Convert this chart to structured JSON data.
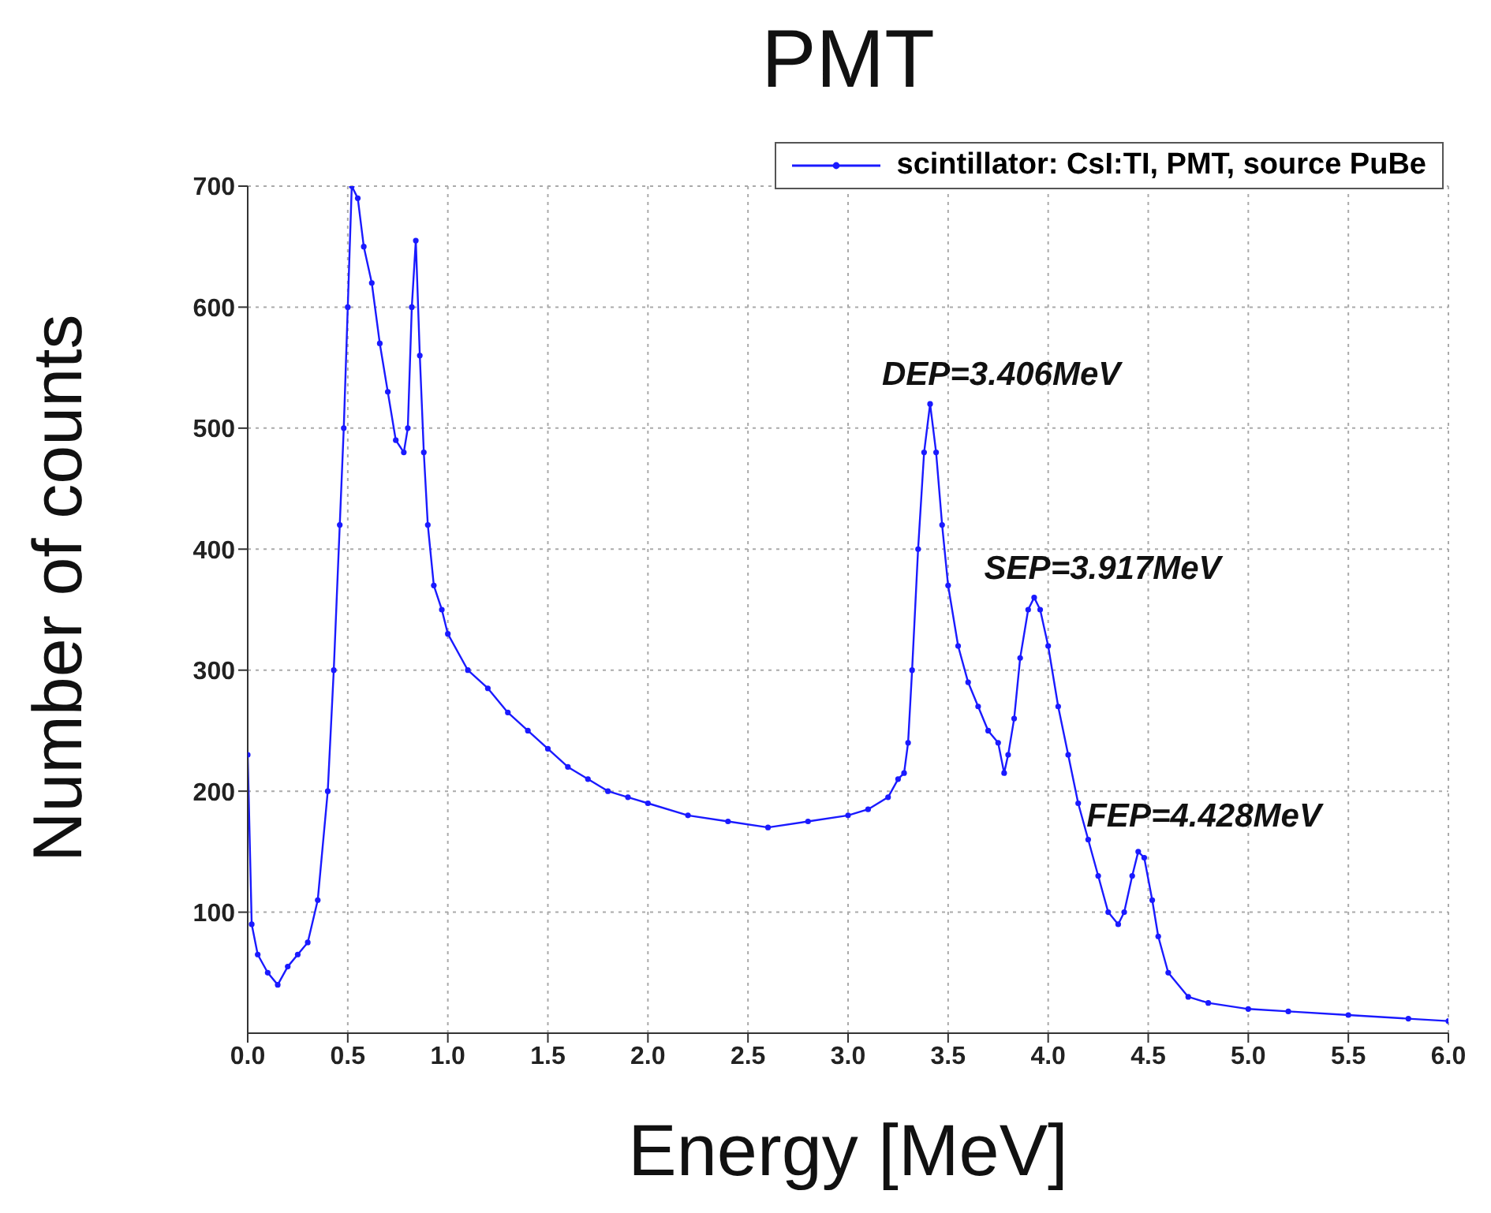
{
  "chart_data": {
    "type": "line",
    "title": "PMT",
    "xlabel": "Energy [MeV]",
    "ylabel": "Number of counts",
    "x": [
      0.0,
      0.02,
      0.05,
      0.1,
      0.15,
      0.2,
      0.25,
      0.3,
      0.35,
      0.4,
      0.43,
      0.46,
      0.48,
      0.5,
      0.52,
      0.55,
      0.58,
      0.62,
      0.66,
      0.7,
      0.74,
      0.78,
      0.8,
      0.82,
      0.84,
      0.86,
      0.88,
      0.9,
      0.93,
      0.97,
      1.0,
      1.1,
      1.2,
      1.3,
      1.4,
      1.5,
      1.6,
      1.7,
      1.8,
      1.9,
      2.0,
      2.2,
      2.4,
      2.6,
      2.8,
      3.0,
      3.1,
      3.2,
      3.25,
      3.28,
      3.3,
      3.32,
      3.35,
      3.38,
      3.41,
      3.44,
      3.47,
      3.5,
      3.55,
      3.6,
      3.65,
      3.7,
      3.75,
      3.78,
      3.8,
      3.83,
      3.86,
      3.9,
      3.93,
      3.96,
      4.0,
      4.05,
      4.1,
      4.15,
      4.2,
      4.25,
      4.3,
      4.35,
      4.38,
      4.42,
      4.45,
      4.48,
      4.52,
      4.55,
      4.6,
      4.7,
      4.8,
      5.0,
      5.2,
      5.5,
      5.8,
      6.0
    ],
    "series": [
      {
        "name": "scintillator: CsI:TI, PMT, source PuBe",
        "color": "#1a1aff",
        "values": [
          230,
          90,
          65,
          50,
          40,
          55,
          65,
          75,
          110,
          200,
          300,
          420,
          500,
          600,
          700,
          690,
          650,
          620,
          570,
          530,
          490,
          480,
          500,
          600,
          655,
          560,
          480,
          420,
          370,
          350,
          330,
          300,
          285,
          265,
          250,
          235,
          220,
          210,
          200,
          195,
          190,
          180,
          175,
          170,
          175,
          180,
          185,
          195,
          210,
          215,
          240,
          300,
          400,
          480,
          520,
          480,
          420,
          370,
          320,
          290,
          270,
          250,
          240,
          215,
          230,
          260,
          310,
          350,
          360,
          350,
          320,
          270,
          230,
          190,
          160,
          130,
          100,
          90,
          100,
          130,
          150,
          145,
          110,
          80,
          50,
          30,
          25,
          20,
          18,
          15,
          12,
          10
        ]
      }
    ],
    "xlim": [
      0,
      6
    ],
    "xticks": [
      {
        "value": 0,
        "label": "0.0"
      },
      {
        "value": 0.5,
        "label": "0.5"
      },
      {
        "value": 1,
        "label": "1.0"
      },
      {
        "value": 1.5,
        "label": "1.5"
      },
      {
        "value": 2,
        "label": "2.0"
      },
      {
        "value": 2.5,
        "label": "2.5"
      },
      {
        "value": 3,
        "label": "3.0"
      },
      {
        "value": 3.5,
        "label": "3.5"
      },
      {
        "value": 4,
        "label": "4.0"
      },
      {
        "value": 4.5,
        "label": "4.5"
      },
      {
        "value": 5,
        "label": "5.0"
      },
      {
        "value": 5.5,
        "label": "5.5"
      },
      {
        "value": 6,
        "label": "6.0"
      }
    ],
    "ylim": [
      0,
      700
    ],
    "yticks": [
      100,
      200,
      300,
      400,
      500,
      600,
      700
    ],
    "annotations": [
      {
        "text": "DEP=3.406MeV",
        "x": 3.406,
        "y": 520
      },
      {
        "text": "SEP=3.917MeV",
        "x": 3.917,
        "y": 360
      },
      {
        "text": "FEP=4.428MeV",
        "x": 4.428,
        "y": 155
      }
    ],
    "grid": true,
    "legend": "top right",
    "marker": "circle",
    "line_style": "solid"
  }
}
